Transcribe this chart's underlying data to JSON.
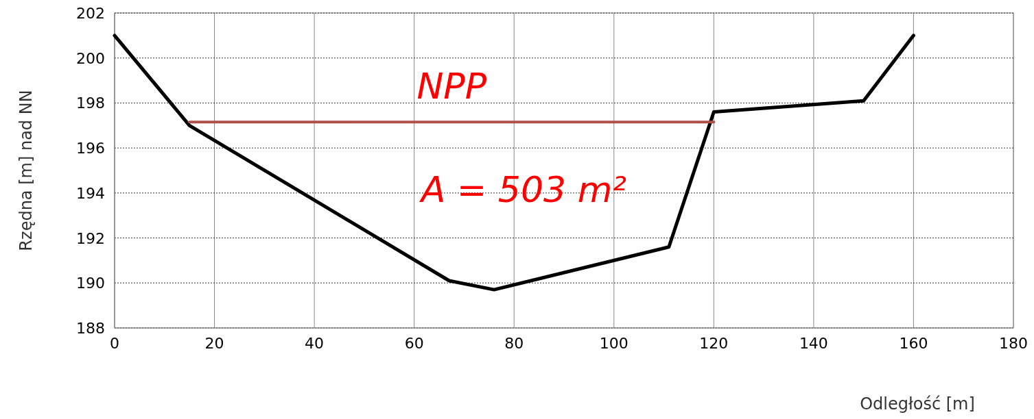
{
  "chart_data": {
    "type": "line",
    "xlabel": "Odległość  [m]",
    "ylabel": "Rzędna  [m] nad NN",
    "xlim": [
      0,
      180
    ],
    "xticks": [
      0,
      20,
      40,
      60,
      80,
      100,
      120,
      140,
      160,
      180
    ],
    "ylim": [
      188,
      202
    ],
    "yticks": [
      188,
      190,
      192,
      194,
      196,
      198,
      200,
      202
    ],
    "grid": true,
    "marker": "none",
    "line_style": "solid",
    "series": [
      {
        "color": "#000000",
        "x": [
          0,
          15,
          67,
          76,
          111,
          120,
          150,
          160
        ],
        "values": [
          201,
          197,
          190.1,
          189.7,
          191.6,
          197.6,
          198.1,
          201
        ]
      },
      {
        "name": "NPP",
        "color": "#b0504c",
        "x": [
          15,
          120
        ],
        "values": [
          197.15,
          197.15
        ]
      }
    ],
    "annotations": [
      "A = 503 m²"
    ]
  }
}
